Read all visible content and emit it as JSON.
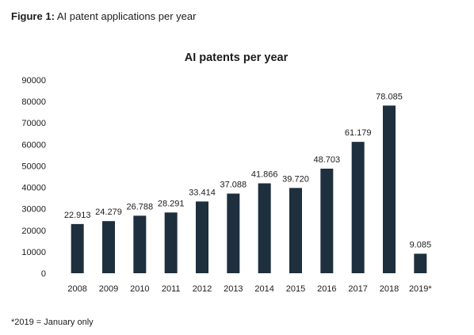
{
  "figure": {
    "label": "Figure 1",
    "separator": ":",
    "caption": " AI patent applications per year",
    "footnote": "*2019 = January only"
  },
  "colors": {
    "bar": "#1e2f3d",
    "text": "#1c1c1c",
    "background": "#ffffff"
  },
  "chart_data": {
    "type": "bar",
    "title": "AI patents per year",
    "xlabel": "",
    "ylabel": "",
    "categories": [
      "2008",
      "2009",
      "2010",
      "2011",
      "2012",
      "2013",
      "2014",
      "2015",
      "2016",
      "2017",
      "2018",
      "2019*"
    ],
    "values": [
      22913,
      24279,
      26788,
      28291,
      33414,
      37088,
      41866,
      39720,
      48703,
      61179,
      78085,
      9085
    ],
    "data_labels": [
      "22.913",
      "24.279",
      "26.788",
      "28.291",
      "33.414",
      "37.088",
      "41.866",
      "39.720",
      "48.703",
      "61.179",
      "78.085",
      "9.085"
    ],
    "ylim": [
      0,
      90000
    ],
    "yticks": [
      0,
      10000,
      20000,
      30000,
      40000,
      50000,
      60000,
      70000,
      80000,
      90000
    ],
    "ytick_labels": [
      "0",
      "10000",
      "20000",
      "30000",
      "40000",
      "50000",
      "60000",
      "70000",
      "80000",
      "90000"
    ],
    "grid": false,
    "legend": "none"
  }
}
